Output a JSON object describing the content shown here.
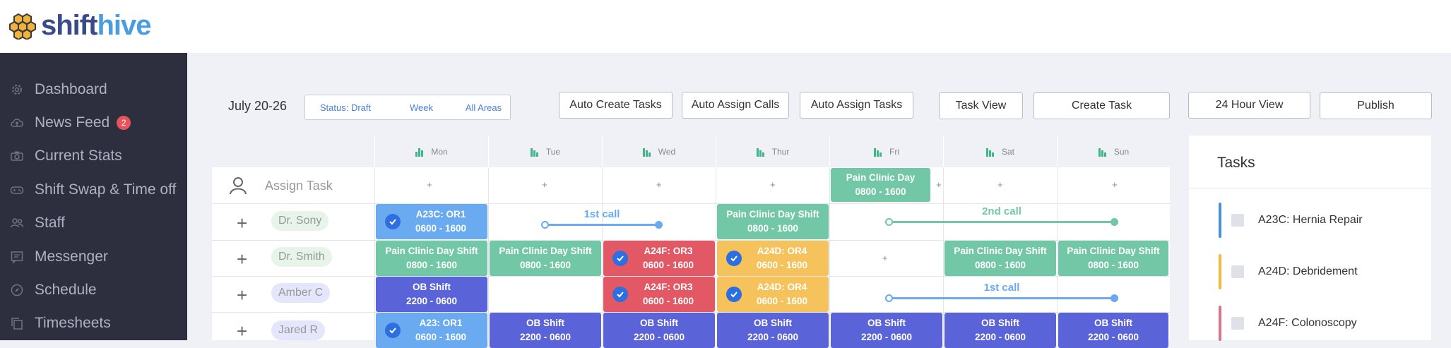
{
  "app": {
    "logo_shift": "shift",
    "logo_hive": "hive"
  },
  "sidebar": {
    "items": [
      {
        "label": "Dashboard",
        "icon": "gear-icon"
      },
      {
        "label": "News Feed",
        "icon": "cloud-upload-icon",
        "badge": "2"
      },
      {
        "label": "Current Stats",
        "icon": "camera-icon"
      },
      {
        "label": "Shift Swap & Time off",
        "icon": "gamepad-icon"
      },
      {
        "label": "Staff",
        "icon": "users-icon"
      },
      {
        "label": "Messenger",
        "icon": "message-icon"
      },
      {
        "label": "Schedule",
        "icon": "compass-icon"
      },
      {
        "label": "Timesheets",
        "icon": "copy-icon"
      }
    ]
  },
  "toolbar": {
    "week": "July 20-26",
    "status": "Status: Draft",
    "view": "Week",
    "areas": "All Areas",
    "auto_create": "Auto Create Tasks",
    "auto_calls": "Auto Assign Calls",
    "auto_tasks": "Auto Assign Tasks",
    "task_view": "Task View",
    "create_task": "Create Task",
    "hour_view": "24 Hour View",
    "publish": "Publish"
  },
  "schedule": {
    "days": [
      "Mon",
      "Tue",
      "Wed",
      "Thur",
      "Fri",
      "Sat",
      "Sun"
    ],
    "assign_task": "Assign Task",
    "add": "+",
    "people": [
      "Dr. Sony",
      "Dr. Smith",
      "Amber C",
      "Jared R"
    ],
    "shifts": [
      {
        "title": "Pain Clinic Day",
        "time": "0800 - 1600"
      },
      {
        "title": "A23C: OR1",
        "time": "0600 - 1600"
      },
      {
        "title": "Pain Clinic Day Shift",
        "time": "0800 - 1600"
      },
      {
        "title": "Pain Clinic Day Shift",
        "time": "0800 - 1600"
      },
      {
        "title": "Pain Clinic Day Shift",
        "time": "0800 - 1600"
      },
      {
        "title": "A24F: OR3",
        "time": "0600 - 1600"
      },
      {
        "title": "A24D: OR4",
        "time": "0600 - 1600"
      },
      {
        "title": "Pain Clinic Day Shift",
        "time": "0800 - 1600"
      },
      {
        "title": "Pain Clinic Day Shift",
        "time": "0800 - 1600"
      },
      {
        "title": "OB Shift",
        "time": "2200 - 0600"
      },
      {
        "title": "A24F: OR3",
        "time": "0600 - 1600"
      },
      {
        "title": "A24D: OR4",
        "time": "0600 - 1600"
      },
      {
        "title": "A23: OR1",
        "time": "0600 - 1600"
      },
      {
        "title": "OB Shift",
        "time": "2200 - 0600"
      },
      {
        "title": "OB Shift",
        "time": "2200 - 0600"
      },
      {
        "title": "OB Shift",
        "time": "2200 - 0600"
      },
      {
        "title": "OB Shift",
        "time": "2200 - 0600"
      },
      {
        "title": "OB Shift",
        "time": "2200 - 0600"
      },
      {
        "title": "OB Shift",
        "time": "2200 - 0600"
      }
    ],
    "calls": [
      "1st call",
      "2nd call",
      "1st call"
    ]
  },
  "tasks_panel": {
    "title": "Tasks",
    "items": [
      {
        "label": "A23C: Hernia Repair",
        "color": "#4a90e2"
      },
      {
        "label": "A24D: Debridement",
        "color": "#f5b942"
      },
      {
        "label": "A24F: Colonoscopy",
        "color": "#d9748a"
      }
    ]
  },
  "colors": {
    "blue": "#6aaaf0",
    "green": "#72c7a6",
    "red": "#e25865",
    "yellow": "#f6c25c",
    "indigo": "#5b63d8",
    "call": "#6aaaf0",
    "call2": "#72c7a6"
  }
}
